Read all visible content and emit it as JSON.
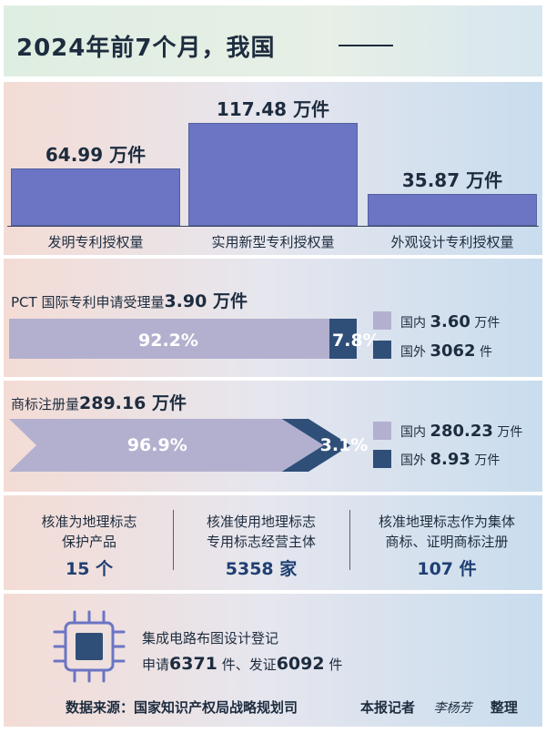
{
  "title": "2024年前7个月，我国",
  "chart_data": [
    {
      "type": "bar",
      "categories": [
        "发明专利授权量",
        "实用新型专利授权量",
        "外观设计专利授权量"
      ],
      "values": [
        64.99,
        117.48,
        35.87
      ],
      "value_labels": [
        "64.99 万件",
        "117.48 万件",
        "35.87 万件"
      ],
      "unit": "万件",
      "ylim": [
        0,
        117.48
      ]
    },
    {
      "type": "bar",
      "orientation": "horizontal-stacked",
      "title_prefix": "PCT 国际专利申请受理量",
      "title_value": "3.90 万件",
      "series": [
        {
          "name": "国内",
          "value_text": "3.60",
          "unit": "万件",
          "percent": 92.2,
          "percent_label": "92.2%",
          "color": "#b3b0cf"
        },
        {
          "name": "国外",
          "value_text": "3062",
          "unit": "件",
          "percent": 7.8,
          "percent_label": "7.8%",
          "color": "#2f4f78"
        }
      ]
    },
    {
      "type": "bar",
      "orientation": "horizontal-stacked",
      "title_prefix": "商标注册量",
      "title_value": "289.16 万件",
      "series": [
        {
          "name": "国内",
          "value_text": "280.23",
          "unit": "万件",
          "percent": 96.9,
          "percent_label": "96.9%",
          "color": "#b3b0cf"
        },
        {
          "name": "国外",
          "value_text": "8.93",
          "unit": "万件",
          "percent": 3.1,
          "percent_label": "3.1%",
          "color": "#2f4f78"
        }
      ]
    }
  ],
  "geo_stats": [
    {
      "line1": "核准为地理标志",
      "line2": "保护产品",
      "value": "15 个"
    },
    {
      "line1": "核准使用地理标志",
      "line2": "专用标志经营主体",
      "value": "5358 家"
    },
    {
      "line1": "核准地理标志作为集体",
      "line2": "商标、证明商标注册",
      "value": "107 件"
    }
  ],
  "ic": {
    "title": "集成电路布图设计登记",
    "apply_label": "申请",
    "apply_value": "6371",
    "apply_unit": "件、发证",
    "issue_value": "6092",
    "issue_unit": "件",
    "icon": "chip-icon"
  },
  "footer": {
    "source": "数据来源：国家知识产权局战略规划司",
    "reporter_label": "本报记者",
    "reporter_name": "李杨芳",
    "edit": "整理"
  },
  "colors": {
    "bar": "#6b75c4",
    "domestic": "#b3b0cf",
    "foreign": "#2f4f78",
    "value_text": "#1f3f72"
  }
}
